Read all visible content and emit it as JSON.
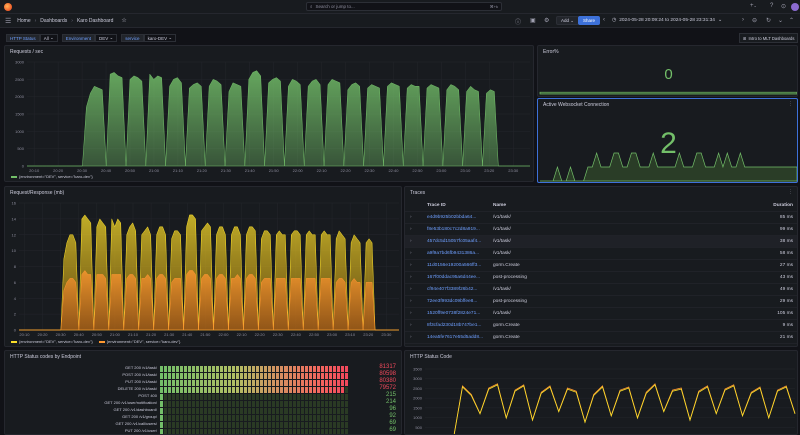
{
  "topbar": {
    "search_placeholder": "Search or jump to...",
    "search_shortcut": "⌘+k",
    "plus_label": "+",
    "plus_chevron": "⌄"
  },
  "breadcrumb": {
    "home": "Home",
    "dashboards": "Dashboards",
    "current": "Karo Dashboard"
  },
  "toolbar": {
    "add_label": "Add",
    "add_chevron": "⌄",
    "share_label": "Share",
    "time_range": "2024-05-28 20:09:24 to 2024-05-28 23:31:34",
    "time_chevron": "⌄"
  },
  "variables": [
    {
      "label": "HTTP Status",
      "value": "All"
    },
    {
      "label": "Environment",
      "value": "DEV"
    },
    {
      "label": "service",
      "value": "karo-DEV"
    }
  ],
  "link_label": "Intro to MLT Dashboards",
  "colors": {
    "green": "#73bf69",
    "orange": "#ff9830",
    "yellow": "#fade2a",
    "red": "#f2495c",
    "blue": "#6e9fff",
    "accent": "#3d71d9"
  },
  "panels": {
    "requests": {
      "title": "Requests / sec",
      "legend": "{environment=\"DEV\", service=\"karo-dev\"}",
      "chart_data": {
        "type": "area",
        "ylim": [
          0,
          3000
        ],
        "yticks": [
          "0",
          "500",
          "1000",
          "1500",
          "2000",
          "2500",
          "3000"
        ],
        "xticks": [
          "20:10",
          "20:20",
          "20:30",
          "20:40",
          "20:50",
          "21:00",
          "21:10",
          "21:20",
          "21:30",
          "21:40",
          "21:50",
          "22:00",
          "22:10",
          "22:20",
          "22:30",
          "22:40",
          "22:50",
          "23:00",
          "23:10",
          "23:20",
          "23:30"
        ],
        "x_minutes_start": 10,
        "values": [
          0,
          0,
          0,
          0,
          0,
          0,
          0,
          0,
          0,
          0,
          0,
          0,
          0,
          0,
          0,
          1700,
          2100,
          2300,
          2250,
          2200,
          0,
          2650,
          2700,
          2600,
          2550,
          0,
          2500,
          2600,
          2550,
          2450,
          0,
          2650,
          2500,
          2600,
          2550,
          0,
          2300,
          2500,
          2550,
          2400,
          0,
          2250,
          2350,
          2400,
          2300,
          0,
          2300,
          2500,
          2450,
          2350,
          0,
          2150,
          2400,
          2350,
          2300,
          0,
          2500,
          2700,
          2750,
          2600,
          0,
          2400,
          2500,
          2550,
          2450,
          0,
          2300,
          2500,
          2450,
          2350,
          0,
          2300,
          2450,
          2500,
          2350,
          0,
          2350,
          2500,
          2450,
          2400,
          0,
          2200,
          2350,
          2400,
          2300,
          0,
          2250,
          2350,
          2300,
          2250,
          0,
          2300,
          2400,
          2350,
          2300,
          0,
          2250,
          2350,
          2300,
          2300,
          0,
          2250,
          2350,
          2300,
          2250,
          0,
          2200,
          2350,
          2300,
          2200,
          0,
          2150,
          2300,
          2200,
          2150,
          0,
          2100,
          2200,
          2150,
          0,
          0,
          0,
          0,
          0,
          0,
          0,
          0,
          0
        ]
      }
    },
    "error": {
      "title": "Error%",
      "value": "0",
      "chart_data": {
        "type": "area",
        "values": [
          0,
          0,
          0,
          0,
          0,
          0,
          0,
          0,
          0,
          0
        ]
      }
    },
    "websocket": {
      "title": "Active Websocket Connection",
      "value": "2",
      "chart_data": {
        "type": "line",
        "values": [
          0,
          0,
          0,
          0,
          1,
          0,
          0,
          1,
          0,
          0,
          0,
          1,
          1,
          2,
          1,
          1,
          1,
          2,
          2,
          1,
          1,
          2,
          2,
          1,
          1,
          1,
          2,
          1,
          1,
          1,
          1,
          1,
          2,
          1,
          1,
          1,
          2,
          2,
          1,
          1,
          1,
          2,
          1,
          2,
          1,
          1,
          2,
          1,
          1,
          1,
          1,
          1,
          1,
          1,
          1,
          1,
          1,
          1,
          1,
          1
        ]
      }
    },
    "reqres": {
      "title": "Request/Response (mb)",
      "legend1": "{environment=\"DEV\", service=\"karo-dev\"}",
      "legend2": "{environment=\"DEV\", service=\"karo-dev\"}",
      "chart_data": {
        "type": "area",
        "ylim": [
          0,
          16
        ],
        "yticks": [
          "0",
          "2",
          "4",
          "6",
          "8",
          "10",
          "12",
          "14",
          "16"
        ],
        "xticks": [
          "20:10",
          "20:20",
          "20:30",
          "20:40",
          "20:50",
          "21:00",
          "21:10",
          "21:20",
          "21:30",
          "21:40",
          "21:50",
          "22:00",
          "22:10",
          "22:20",
          "22:30",
          "22:40",
          "22:50",
          "23:00",
          "23:10",
          "23:20",
          "23:30"
        ],
        "series": [
          {
            "color": "#fade2a",
            "values": [
              0,
              0,
              0,
              0,
              0,
              0,
              0,
              0,
              0,
              0,
              0,
              0,
              0,
              0,
              0,
              9,
              11,
              12,
              12,
              11,
              0,
              14,
              14.5,
              14,
              13.5,
              0,
              13,
              14,
              13.5,
              13,
              0,
              14,
              13,
              14,
              13.5,
              0,
              12,
              13,
              13.5,
              12.5,
              0,
              12,
              12.5,
              13,
              12,
              0,
              12,
              13,
              13,
              12,
              0,
              11.5,
              12.5,
              12.5,
              12,
              0,
              13,
              14.5,
              14.5,
              14,
              0,
              12.5,
              13,
              13.5,
              13,
              0,
              12,
              13,
              13,
              12,
              0,
              12,
              13,
              13,
              12,
              0,
              12,
              13,
              13,
              12.5,
              0,
              11.5,
              12.5,
              12.5,
              12,
              0,
              12,
              12.5,
              12,
              12,
              0,
              12,
              12.5,
              12.5,
              12,
              0,
              12,
              12.5,
              12,
              12,
              0,
              12,
              12.5,
              12,
              12,
              0,
              11.5,
              12.5,
              12,
              11.5,
              0,
              11,
              12,
              11.5,
              11,
              0,
              11,
              11.5,
              11,
              0,
              0,
              0,
              0,
              0,
              0,
              0,
              0,
              0
            ]
          },
          {
            "color": "#ff9830",
            "values": [
              0,
              0,
              0,
              0,
              0,
              0,
              0,
              0,
              0,
              0,
              0,
              0,
              0,
              0,
              0,
              5,
              6,
              6.5,
              6.5,
              6,
              0,
              7,
              7.5,
              7,
              7,
              0,
              7,
              7,
              7,
              6.5,
              0,
              7,
              7,
              7,
              7,
              0,
              6.5,
              7,
              7,
              6.5,
              0,
              6.5,
              6.5,
              7,
              6.5,
              0,
              6.5,
              7,
              7,
              6.5,
              0,
              6,
              6.5,
              6.5,
              6.5,
              0,
              7,
              7.5,
              7.5,
              7,
              0,
              6.5,
              7,
              7,
              6.5,
              0,
              6.5,
              7,
              7,
              6.5,
              0,
              6.5,
              6.5,
              7,
              6.5,
              0,
              6.5,
              7,
              7,
              6.5,
              0,
              6,
              6.5,
              6.5,
              6.5,
              0,
              6.5,
              6.5,
              6.5,
              6.5,
              0,
              6.5,
              6.5,
              6.5,
              6.5,
              0,
              6.5,
              6.5,
              6.5,
              6.5,
              0,
              6.5,
              6.5,
              6.5,
              6.5,
              0,
              6,
              6.5,
              6.5,
              6,
              0,
              6,
              6.5,
              6,
              6,
              0,
              6,
              6,
              6,
              0,
              0,
              0,
              0,
              0,
              0,
              0,
              0,
              0
            ]
          }
        ]
      }
    },
    "traces": {
      "title": "Traces",
      "columns": [
        "Trace ID",
        "Name",
        "Duration"
      ],
      "rows": [
        {
          "id": "e4d9b925b02bbda64...",
          "name": "/v1/task/",
          "duration": "85 ms"
        },
        {
          "id": "f8e53b180c7c2d8a919...",
          "name": "/v1/task/",
          "duration": "99 ms"
        },
        {
          "id": "457dc5d15057fc05aaf4...",
          "name": "/v1/task/",
          "duration": "38 ms"
        },
        {
          "id": "a9f9a7bd6fb9431386a...",
          "name": "/v1/task/",
          "duration": "58 ms"
        },
        {
          "id": "11d0156e19200a566ff3...",
          "name": "gorm.Create",
          "duration": "27 ms"
        },
        {
          "id": "167f00ddac95a6d44ee...",
          "name": "post-processing",
          "duration": "43 ms"
        },
        {
          "id": "cf94e407f3389f26b42...",
          "name": "/v1/task/",
          "duration": "49 ms"
        },
        {
          "id": "72ee3f993dc09bffee8...",
          "name": "post-processing",
          "duration": "29 ms"
        },
        {
          "id": "1520ff9e0738f2824e71...",
          "name": "/v1/task/",
          "duration": "105 ms"
        },
        {
          "id": "8f3cfad230d18b747be1...",
          "name": "gorm.Create",
          "duration": "9 ms"
        },
        {
          "id": "14ea5fe7617e55d5add8...",
          "name": "gorm.Create",
          "duration": "21 ms"
        }
      ]
    },
    "status_by_endpoint": {
      "title": "HTTP Status codes by Endpoint",
      "rows": [
        {
          "endpoint": "GET 200 /v1/task/",
          "value": "81317",
          "level": 1.0
        },
        {
          "endpoint": "POST 200 /v1/task/",
          "value": "80598",
          "level": 0.99
        },
        {
          "endpoint": "PUT 200 /v1/task/",
          "value": "80380",
          "level": 0.99
        },
        {
          "endpoint": "DELETE 200 /v1/task/",
          "value": "79572",
          "level": 0.98
        },
        {
          "endpoint": "POST 400",
          "value": "215",
          "level": 0.01
        },
        {
          "endpoint": "GET 200 /v1/user/notification/",
          "value": "214",
          "level": 0.01
        },
        {
          "endpoint": "GET 200 /v1/dashboard/",
          "value": "96",
          "level": 0.005
        },
        {
          "endpoint": "GET 200 /v1/group/",
          "value": "92",
          "level": 0.005
        },
        {
          "endpoint": "GET 200 /v1/call/users/",
          "value": "69",
          "level": 0.004
        },
        {
          "endpoint": "PUT 200 /v1/user/",
          "value": "69",
          "level": 0.004
        }
      ]
    },
    "status_code": {
      "title": "HTTP Status Code",
      "chart_data": {
        "type": "line",
        "ylim": [
          0,
          3500
        ],
        "yticks": [
          "0",
          "500",
          "1000",
          "1500",
          "2000",
          "2500",
          "3000",
          "3500"
        ],
        "series": [
          {
            "color": "#ff9830",
            "values": [
              0,
              300,
              2700,
              2300,
              1400,
              2600,
              2800,
              1200,
              2500,
              2750,
              1100,
              2400,
              2700,
              1500,
              2600,
              2450,
              1000,
              2300,
              2700,
              1300,
              2500,
              2650,
              1200,
              2400,
              2800,
              1500,
              2500,
              2600,
              1100,
              2450,
              2700,
              1400,
              2550,
              2750,
              1300,
              2400,
              2650,
              1200,
              2500,
              2700,
              1400
            ]
          },
          {
            "color": "#fade2a",
            "values": [
              0,
              280,
              2650,
              2250,
              1380,
              2550,
              2750,
              1180,
              2450,
              2700,
              1080,
              2350,
              2650,
              1480,
              2550,
              2400,
              980,
              2250,
              2650,
              1280,
              2450,
              2600,
              1180,
              2350,
              2750,
              1480,
              2450,
              2550,
              1080,
              2400,
              2650,
              1380,
              2500,
              2700,
              1280,
              2350,
              2600,
              1180,
              2450,
              2650,
              1380
            ]
          }
        ]
      }
    }
  }
}
